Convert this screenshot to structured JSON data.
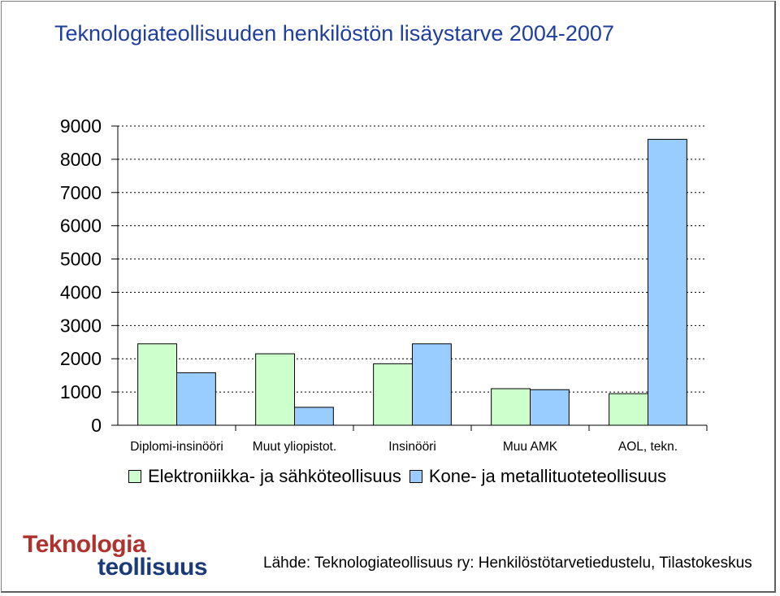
{
  "title": "Teknologiateollisuuden henkilöstön lisäystarve 2004-2007",
  "chart_data": {
    "type": "bar",
    "categories": [
      "Diplomi-insinööri",
      "Muut yliopistot.",
      "Insinööri",
      "Muu AMK",
      "AOL, tekn."
    ],
    "series": [
      {
        "name": "Elektroniikka- ja sähköteollisuus",
        "values": [
          2450,
          2150,
          1850,
          1100,
          950
        ],
        "color": "#ccffcc"
      },
      {
        "name": "Kone- ja metallituoteteollisuus",
        "values": [
          1580,
          540,
          2450,
          1070,
          8600
        ],
        "color": "#99ccff"
      }
    ],
    "ylim": [
      0,
      9000
    ],
    "yticks": [
      "0",
      "1000",
      "2000",
      "3000",
      "4000",
      "5000",
      "6000",
      "7000",
      "8000",
      "9000"
    ],
    "grid": true,
    "legend_position": "bottom"
  },
  "logo": {
    "line1": "Teknologia",
    "line2": "teollisuus"
  },
  "source": "Lähde: Teknologiateollisuus ry: Henkilöstötarvetiedustelu, Tilastokeskus"
}
